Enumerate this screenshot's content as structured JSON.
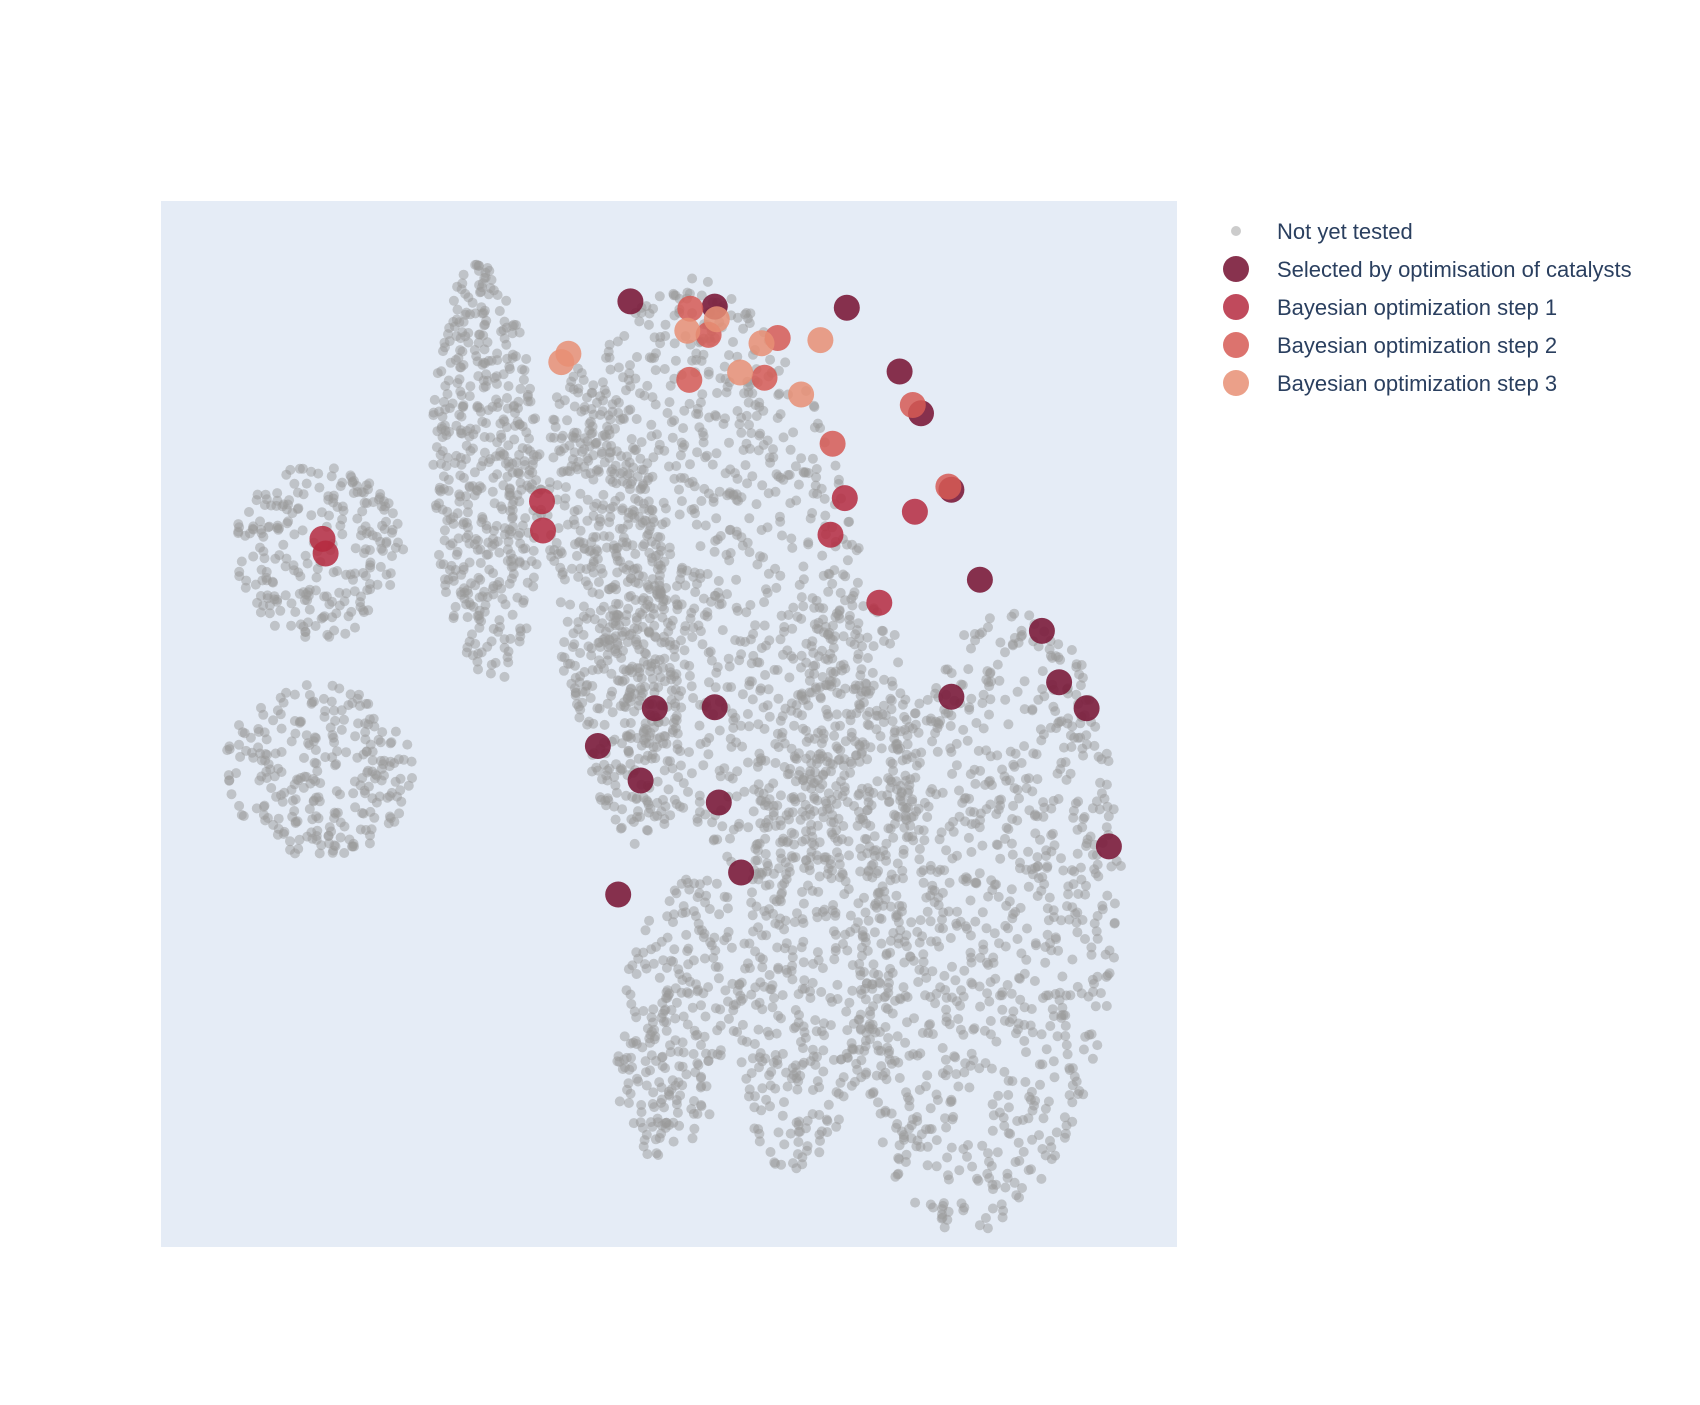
{
  "chart_data": {
    "type": "scatter",
    "title": "",
    "xlabel": "",
    "ylabel": "",
    "axes_visible": false,
    "grid": false,
    "plot_background": "#e5ecf6",
    "legend_placement": "right",
    "xlim": [
      0,
      100
    ],
    "ylim": [
      0,
      100
    ],
    "background_clusters": [
      {
        "center": [
          15.5,
          66.5
        ],
        "radius": [
          8.5,
          8.5
        ],
        "count": 240
      },
      {
        "center": [
          15.5,
          45.5
        ],
        "radius": [
          9.5,
          8.5
        ],
        "count": 260
      },
      {
        "center": [
          32.0,
          74.0
        ],
        "radius": [
          5.5,
          20.5
        ],
        "tilt": 2,
        "count": 480
      },
      {
        "center": [
          44.5,
          61.0
        ],
        "radius": [
          6.0,
          24.0
        ],
        "tilt": 8,
        "count": 520
      },
      {
        "center": [
          56.0,
          64.0
        ],
        "radius": [
          13.5,
          30.0
        ],
        "tilt": 12,
        "count": 900
      },
      {
        "center": [
          51.0,
          22.0
        ],
        "radius": [
          6.0,
          14.0
        ],
        "tilt": -10,
        "count": 260
      },
      {
        "center": [
          65.5,
          34.5
        ],
        "radius": [
          8.0,
          28.0
        ],
        "tilt": -8,
        "count": 600
      },
      {
        "center": [
          81.5,
          31.0
        ],
        "radius": [
          13.0,
          30.5
        ],
        "tilt": -6,
        "count": 900
      }
    ],
    "series": [
      {
        "name": "Not yet tested",
        "color": "#9a9a9a",
        "opacity": 0.5,
        "marker": "small",
        "points": []
      },
      {
        "name": "Selected by optimisation of catalysts",
        "color": "#7b1c3b",
        "opacity": 0.9,
        "marker": "large",
        "points": [
          [
            46.2,
            90.4
          ],
          [
            54.5,
            89.9
          ],
          [
            67.5,
            89.8
          ],
          [
            72.7,
            83.7
          ],
          [
            74.8,
            79.7
          ],
          [
            77.8,
            72.4
          ],
          [
            80.6,
            63.8
          ],
          [
            86.7,
            58.9
          ],
          [
            88.4,
            54.0
          ],
          [
            91.1,
            51.5
          ],
          [
            93.3,
            38.3
          ],
          [
            77.8,
            52.6
          ],
          [
            48.6,
            51.5
          ],
          [
            54.5,
            51.6
          ],
          [
            43.0,
            47.9
          ],
          [
            47.2,
            44.6
          ],
          [
            54.9,
            42.5
          ],
          [
            57.1,
            35.8
          ],
          [
            45.0,
            33.7
          ]
        ]
      },
      {
        "name": "Bayesian optimization step 1",
        "color": "#b52a40",
        "opacity": 0.85,
        "marker": "large",
        "points": [
          [
            15.9,
            67.7
          ],
          [
            16.2,
            66.3
          ],
          [
            37.5,
            71.3
          ],
          [
            37.6,
            68.5
          ],
          [
            67.3,
            71.6
          ],
          [
            74.2,
            70.3
          ],
          [
            65.9,
            68.1
          ],
          [
            70.7,
            61.6
          ]
        ]
      },
      {
        "name": "Bayesian optimization step 2",
        "color": "#d65a55",
        "opacity": 0.85,
        "marker": "large",
        "points": [
          [
            52.1,
            89.7
          ],
          [
            53.9,
            87.2
          ],
          [
            52.0,
            82.9
          ],
          [
            60.7,
            86.9
          ],
          [
            59.4,
            83.1
          ],
          [
            74.0,
            80.5
          ],
          [
            66.1,
            76.8
          ],
          [
            77.5,
            72.7
          ]
        ]
      },
      {
        "name": "Bayesian optimization step 3",
        "color": "#e88f74",
        "opacity": 0.85,
        "marker": "large",
        "points": [
          [
            40.1,
            85.4
          ],
          [
            39.4,
            84.6
          ],
          [
            51.8,
            87.6
          ],
          [
            54.7,
            88.7
          ],
          [
            59.1,
            86.4
          ],
          [
            57.0,
            83.6
          ],
          [
            64.9,
            86.7
          ],
          [
            63.0,
            81.5
          ]
        ]
      }
    ]
  }
}
